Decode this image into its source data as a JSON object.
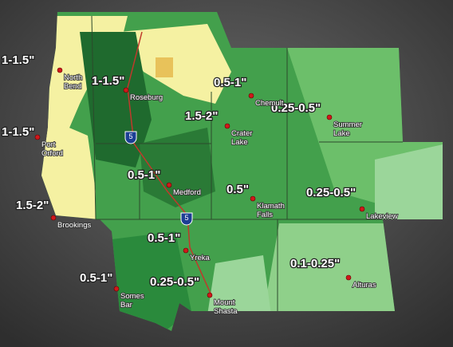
{
  "amounts": [
    "1-1.5\"",
    "1-1.5\"",
    "1.5-2\"",
    "1-1.5\"",
    "0.5-1\"",
    "0.25-0.5\"",
    "1.5-2\"",
    "0.5-1\"",
    "0.5\"",
    "0.25-0.5\"",
    "0.5-1\"",
    "0.5-1\"",
    "0.25-0.5\"",
    "0.1-0.25\""
  ],
  "cities": [
    [
      "North",
      "Bend"
    ],
    [
      "Roseburg"
    ],
    [
      "Port",
      "Orford"
    ],
    [
      "Brookings"
    ],
    [
      "Chemult"
    ],
    [
      "Crater",
      "Lake"
    ],
    [
      "Summer",
      "Lake"
    ],
    [
      "Medford"
    ],
    [
      "Klamath",
      "Falls"
    ],
    [
      "Lakeview"
    ],
    [
      "Yreka"
    ],
    [
      "Somes",
      "Bar"
    ],
    [
      "Mount",
      "Shasta"
    ],
    [
      "Alturas"
    ]
  ],
  "interstate": "5"
}
